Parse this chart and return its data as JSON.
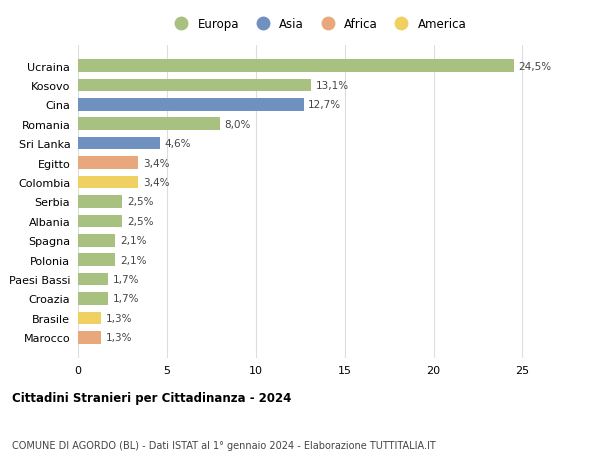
{
  "categories": [
    "Marocco",
    "Brasile",
    "Croazia",
    "Paesi Bassi",
    "Polonia",
    "Spagna",
    "Albania",
    "Serbia",
    "Colombia",
    "Egitto",
    "Sri Lanka",
    "Romania",
    "Cina",
    "Kosovo",
    "Ucraina"
  ],
  "values": [
    1.3,
    1.3,
    1.7,
    1.7,
    2.1,
    2.1,
    2.5,
    2.5,
    3.4,
    3.4,
    4.6,
    8.0,
    12.7,
    13.1,
    24.5
  ],
  "colors": [
    "#e8a87c",
    "#f0d060",
    "#a8c080",
    "#a8c080",
    "#a8c080",
    "#a8c080",
    "#a8c080",
    "#a8c080",
    "#f0d060",
    "#e8a87c",
    "#7090c0",
    "#a8c080",
    "#7090c0",
    "#a8c080",
    "#a8c080"
  ],
  "labels": [
    "1,3%",
    "1,3%",
    "1,7%",
    "1,7%",
    "2,1%",
    "2,1%",
    "2,5%",
    "2,5%",
    "3,4%",
    "3,4%",
    "4,6%",
    "8,0%",
    "12,7%",
    "13,1%",
    "24,5%"
  ],
  "legend_labels": [
    "Europa",
    "Asia",
    "Africa",
    "America"
  ],
  "legend_colors": [
    "#a8c080",
    "#7090c0",
    "#e8a87c",
    "#f0d060"
  ],
  "title1": "Cittadini Stranieri per Cittadinanza - 2024",
  "title2": "COMUNE DI AGORDO (BL) - Dati ISTAT al 1° gennaio 2024 - Elaborazione TUTTITALIA.IT",
  "xlim": [
    0,
    27
  ],
  "xticks": [
    0,
    5,
    10,
    15,
    20,
    25
  ],
  "background_color": "#ffffff",
  "grid_color": "#dddddd"
}
